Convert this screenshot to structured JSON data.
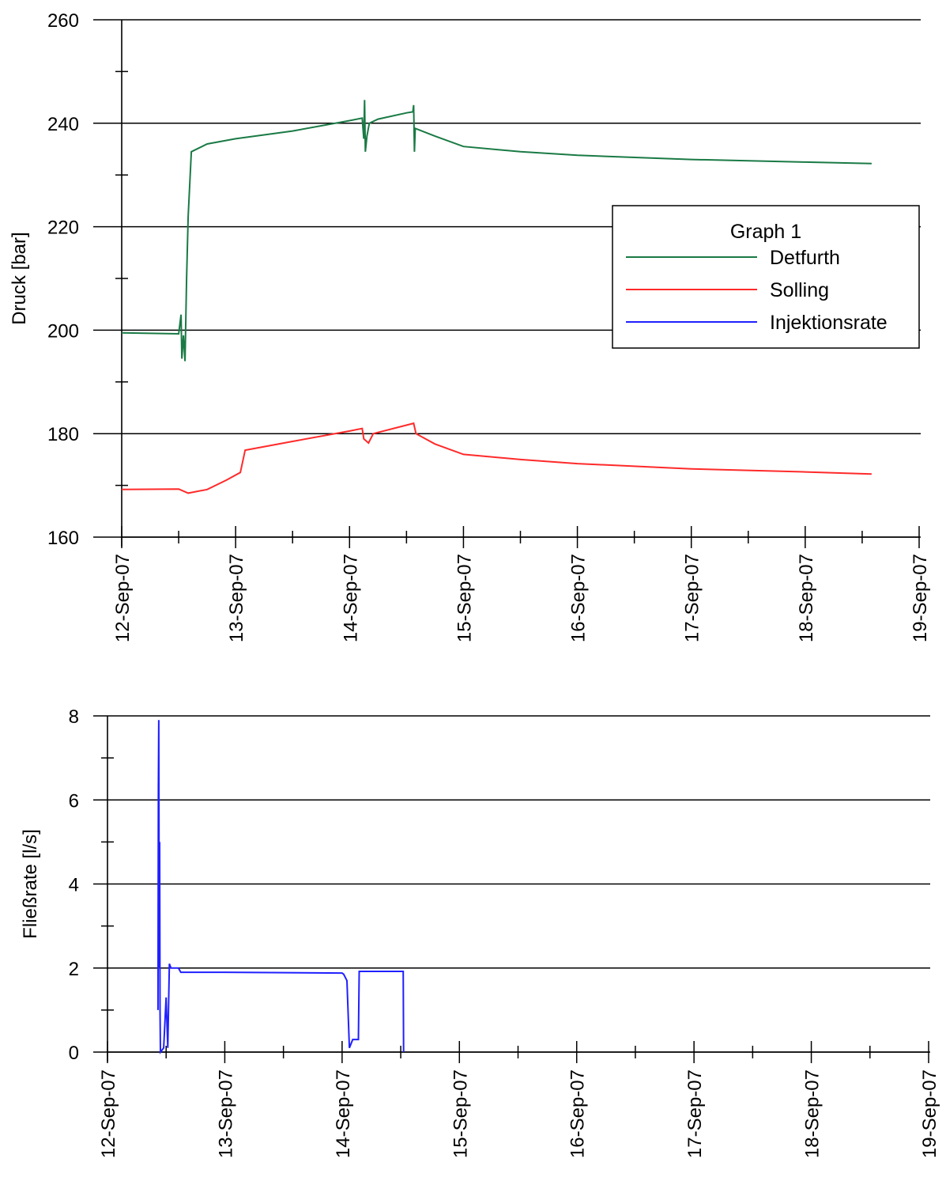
{
  "chart_data": [
    {
      "type": "line",
      "ylabel": "Druck [bar]",
      "ylim": [
        160,
        260
      ],
      "y_ticks": [
        160,
        180,
        200,
        220,
        240,
        260
      ],
      "x_range": [
        "2007-09-12",
        "2007-09-19"
      ],
      "x_tick_labels": [
        "12-Sep-07",
        "13-Sep-07",
        "14-Sep-07",
        "15-Sep-07",
        "16-Sep-07",
        "17-Sep-07",
        "18-Sep-07",
        "19-Sep-07"
      ],
      "grid": "horizontal",
      "legend": {
        "title": "Graph 1",
        "placement": "right",
        "entries": [
          {
            "name": "Detfurth",
            "color": "#1a7a45"
          },
          {
            "name": "Solling",
            "color": "#ff2a2a"
          },
          {
            "name": "Injektionsrate",
            "color": "#2020ff"
          }
        ]
      },
      "series": [
        {
          "name": "Detfurth",
          "color": "#1a7a45",
          "points": [
            [
              "2007-09-12 00:00",
              199.5
            ],
            [
              "2007-09-12 12:00",
              199.3
            ],
            [
              "2007-09-12 12:30",
              203.0
            ],
            [
              "2007-09-12 12:40",
              194.5
            ],
            [
              "2007-09-12 13:00",
              199.0
            ],
            [
              "2007-09-12 13:20",
              194.0
            ],
            [
              "2007-09-12 13:40",
              210.0
            ],
            [
              "2007-09-12 14:00",
              222.0
            ],
            [
              "2007-09-12 14:40",
              234.5
            ],
            [
              "2007-09-12 18:00",
              236.0
            ],
            [
              "2007-09-13 00:00",
              237.0
            ],
            [
              "2007-09-13 12:00",
              238.5
            ],
            [
              "2007-09-14 00:00",
              240.5
            ],
            [
              "2007-09-14 02:40",
              241.0
            ],
            [
              "2007-09-14 03:00",
              237.0
            ],
            [
              "2007-09-14 03:10",
              244.5
            ],
            [
              "2007-09-14 03:20",
              234.5
            ],
            [
              "2007-09-14 03:40",
              237.5
            ],
            [
              "2007-09-14 04:10",
              240.0
            ],
            [
              "2007-09-14 06:00",
              240.8
            ],
            [
              "2007-09-14 12:00",
              242.0
            ],
            [
              "2007-09-14 13:20",
              242.2
            ],
            [
              "2007-09-14 13:30",
              243.5
            ],
            [
              "2007-09-14 13:40",
              234.5
            ],
            [
              "2007-09-14 13:50",
              239.0
            ],
            [
              "2007-09-14 18:00",
              237.5
            ],
            [
              "2007-09-15 00:00",
              235.5
            ],
            [
              "2007-09-15 12:00",
              234.5
            ],
            [
              "2007-09-16 00:00",
              233.8
            ],
            [
              "2007-09-17 00:00",
              233.0
            ],
            [
              "2007-09-18 00:00",
              232.5
            ],
            [
              "2007-09-18 14:00",
              232.2
            ]
          ]
        },
        {
          "name": "Solling",
          "color": "#ff2a2a",
          "points": [
            [
              "2007-09-12 00:00",
              169.2
            ],
            [
              "2007-09-12 12:00",
              169.3
            ],
            [
              "2007-09-12 14:00",
              168.5
            ],
            [
              "2007-09-12 18:00",
              169.2
            ],
            [
              "2007-09-12 22:00",
              171.0
            ],
            [
              "2007-09-13 01:00",
              172.5
            ],
            [
              "2007-09-13 02:00",
              176.8
            ],
            [
              "2007-09-13 12:00",
              178.5
            ],
            [
              "2007-09-14 00:00",
              180.5
            ],
            [
              "2007-09-14 02:40",
              181.0
            ],
            [
              "2007-09-14 03:00",
              179.0
            ],
            [
              "2007-09-14 04:00",
              178.2
            ],
            [
              "2007-09-14 05:00",
              180.0
            ],
            [
              "2007-09-14 13:30",
              182.0
            ],
            [
              "2007-09-14 14:00",
              180.0
            ],
            [
              "2007-09-14 18:00",
              178.0
            ],
            [
              "2007-09-15 00:00",
              176.0
            ],
            [
              "2007-09-15 12:00",
              175.0
            ],
            [
              "2007-09-16 00:00",
              174.2
            ],
            [
              "2007-09-17 00:00",
              173.2
            ],
            [
              "2007-09-18 00:00",
              172.6
            ],
            [
              "2007-09-18 14:00",
              172.2
            ]
          ]
        }
      ]
    },
    {
      "type": "line",
      "ylabel": "Fließrate [l/s]",
      "ylim": [
        0,
        8
      ],
      "y_ticks": [
        0,
        2,
        4,
        6,
        8
      ],
      "x_range": [
        "2007-09-12",
        "2007-09-19"
      ],
      "x_tick_labels": [
        "12-Sep-07",
        "13-Sep-07",
        "14-Sep-07",
        "15-Sep-07",
        "16-Sep-07",
        "17-Sep-07",
        "18-Sep-07",
        "19-Sep-07"
      ],
      "grid": "horizontal",
      "series": [
        {
          "name": "Injektionsrate",
          "color": "#2020ff",
          "points": [
            [
              "2007-09-12 10:20",
              1.0
            ],
            [
              "2007-09-12 10:25",
              6.3
            ],
            [
              "2007-09-12 10:30",
              7.9
            ],
            [
              "2007-09-12 10:35",
              2.0
            ],
            [
              "2007-09-12 10:40",
              5.0
            ],
            [
              "2007-09-12 10:45",
              1.0
            ],
            [
              "2007-09-12 10:50",
              0.0
            ],
            [
              "2007-09-12 11:30",
              0.1
            ],
            [
              "2007-09-12 12:00",
              1.3
            ],
            [
              "2007-09-12 12:20",
              0.1
            ],
            [
              "2007-09-12 12:40",
              2.1
            ],
            [
              "2007-09-12 13:00",
              2.0
            ],
            [
              "2007-09-12 14:30",
              2.0
            ],
            [
              "2007-09-12 15:00",
              1.9
            ],
            [
              "2007-09-13 00:00",
              1.9
            ],
            [
              "2007-09-14 00:00",
              1.88
            ],
            [
              "2007-09-14 00:20",
              1.85
            ],
            [
              "2007-09-14 01:00",
              1.7
            ],
            [
              "2007-09-14 01:30",
              0.1
            ],
            [
              "2007-09-14 02:10",
              0.3
            ],
            [
              "2007-09-14 03:20",
              0.3
            ],
            [
              "2007-09-14 03:30",
              1.92
            ],
            [
              "2007-09-14 12:30",
              1.92
            ],
            [
              "2007-09-14 12:35",
              0.0
            ]
          ]
        }
      ]
    }
  ]
}
